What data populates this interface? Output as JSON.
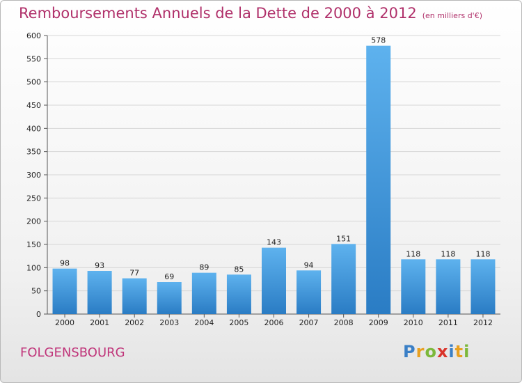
{
  "header": {
    "title": "Remboursements Annuels de la Dette de 2000 à 2012",
    "subtitle": "(en milliers d'€)"
  },
  "footer": {
    "town": "FOLGENSBOURG",
    "logo_letters": [
      "P",
      "r",
      "o",
      "x",
      "i",
      "t",
      "i"
    ],
    "logo_colors": [
      "#3a7fc6",
      "#e8a020",
      "#7cb83a",
      "#d9332a",
      "#3a7fc6",
      "#e8a020",
      "#7cb83a"
    ]
  },
  "chart_data": {
    "type": "bar",
    "categories": [
      "2000",
      "2001",
      "2002",
      "2003",
      "2004",
      "2005",
      "2006",
      "2007",
      "2008",
      "2009",
      "2010",
      "2011",
      "2012"
    ],
    "values": [
      98,
      93,
      77,
      69,
      89,
      85,
      143,
      94,
      151,
      578,
      118,
      118,
      118
    ],
    "title": "Remboursements Annuels de la Dette de 2000 à 2012",
    "xlabel": "",
    "ylabel": "",
    "ylim": [
      0,
      600
    ],
    "yticks": [
      0,
      50,
      100,
      150,
      200,
      250,
      300,
      350,
      400,
      450,
      500,
      550,
      600
    ],
    "grid": true,
    "bar_color": "#4a9fe0"
  }
}
